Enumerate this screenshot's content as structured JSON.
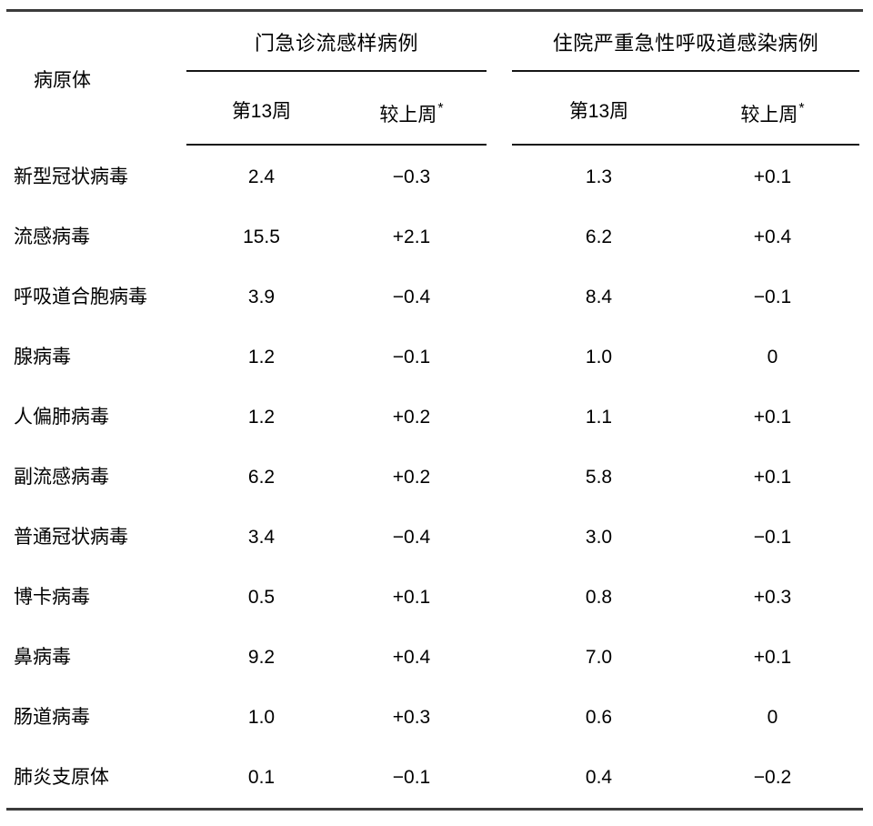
{
  "table": {
    "pathogen_header": "病原体",
    "groups": [
      {
        "label": "门急诊流感样病例",
        "week_label": "第13周",
        "change_label": "较上周",
        "change_footnote": "*"
      },
      {
        "label": "住院严重急性呼吸道感染病例",
        "week_label": "第13周",
        "change_label": "较上周",
        "change_footnote": "*"
      }
    ],
    "rows": [
      {
        "pathogen": "新型冠状病毒",
        "ili_week": "2.4",
        "ili_change": "−0.3",
        "sari_week": "1.3",
        "sari_change": "+0.1"
      },
      {
        "pathogen": "流感病毒",
        "ili_week": "15.5",
        "ili_change": "+2.1",
        "sari_week": "6.2",
        "sari_change": "+0.4"
      },
      {
        "pathogen": "呼吸道合胞病毒",
        "ili_week": "3.9",
        "ili_change": "−0.4",
        "sari_week": "8.4",
        "sari_change": "−0.1"
      },
      {
        "pathogen": "腺病毒",
        "ili_week": "1.2",
        "ili_change": "−0.1",
        "sari_week": "1.0",
        "sari_change": "0"
      },
      {
        "pathogen": "人偏肺病毒",
        "ili_week": "1.2",
        "ili_change": "+0.2",
        "sari_week": "1.1",
        "sari_change": "+0.1"
      },
      {
        "pathogen": "副流感病毒",
        "ili_week": "6.2",
        "ili_change": "+0.2",
        "sari_week": "5.8",
        "sari_change": "+0.1"
      },
      {
        "pathogen": "普通冠状病毒",
        "ili_week": "3.4",
        "ili_change": "−0.4",
        "sari_week": "3.0",
        "sari_change": "−0.1"
      },
      {
        "pathogen": "博卡病毒",
        "ili_week": "0.5",
        "ili_change": "+0.1",
        "sari_week": "0.8",
        "sari_change": "+0.3"
      },
      {
        "pathogen": "鼻病毒",
        "ili_week": "9.2",
        "ili_change": "+0.4",
        "sari_week": "7.0",
        "sari_change": "+0.1"
      },
      {
        "pathogen": "肠道病毒",
        "ili_week": "1.0",
        "ili_change": "+0.3",
        "sari_week": "0.6",
        "sari_change": "0"
      },
      {
        "pathogen": "肺炎支原体",
        "ili_week": "0.1",
        "ili_change": "−0.1",
        "sari_week": "0.4",
        "sari_change": "−0.2"
      }
    ]
  },
  "colors": {
    "background": "#ffffff",
    "text": "#000000",
    "outer_rule": "#3b3b3b",
    "inner_line": "#161616"
  },
  "chart_data": {
    "type": "table",
    "title": "",
    "column_groups": [
      "门急诊流感样病例",
      "住院严重急性呼吸道感染病例"
    ],
    "columns": [
      "病原体",
      "门急诊流感样病例 第13周",
      "门急诊流感样病例 较上周*",
      "住院严重急性呼吸道感染病例 第13周",
      "住院严重急性呼吸道感染病例 较上周*"
    ],
    "rows": [
      [
        "新型冠状病毒",
        2.4,
        -0.3,
        1.3,
        0.1
      ],
      [
        "流感病毒",
        15.5,
        2.1,
        6.2,
        0.4
      ],
      [
        "呼吸道合胞病毒",
        3.9,
        -0.4,
        8.4,
        -0.1
      ],
      [
        "腺病毒",
        1.2,
        -0.1,
        1.0,
        0
      ],
      [
        "人偏肺病毒",
        1.2,
        0.2,
        1.1,
        0.1
      ],
      [
        "副流感病毒",
        6.2,
        0.2,
        5.8,
        0.1
      ],
      [
        "普通冠状病毒",
        3.4,
        -0.4,
        3.0,
        -0.1
      ],
      [
        "博卡病毒",
        0.5,
        0.1,
        0.8,
        0.3
      ],
      [
        "鼻病毒",
        9.2,
        0.4,
        7.0,
        0.1
      ],
      [
        "肠道病毒",
        1.0,
        0.3,
        0.6,
        0
      ],
      [
        "肺炎支原体",
        0.1,
        -0.1,
        0.4,
        -0.2
      ]
    ]
  }
}
